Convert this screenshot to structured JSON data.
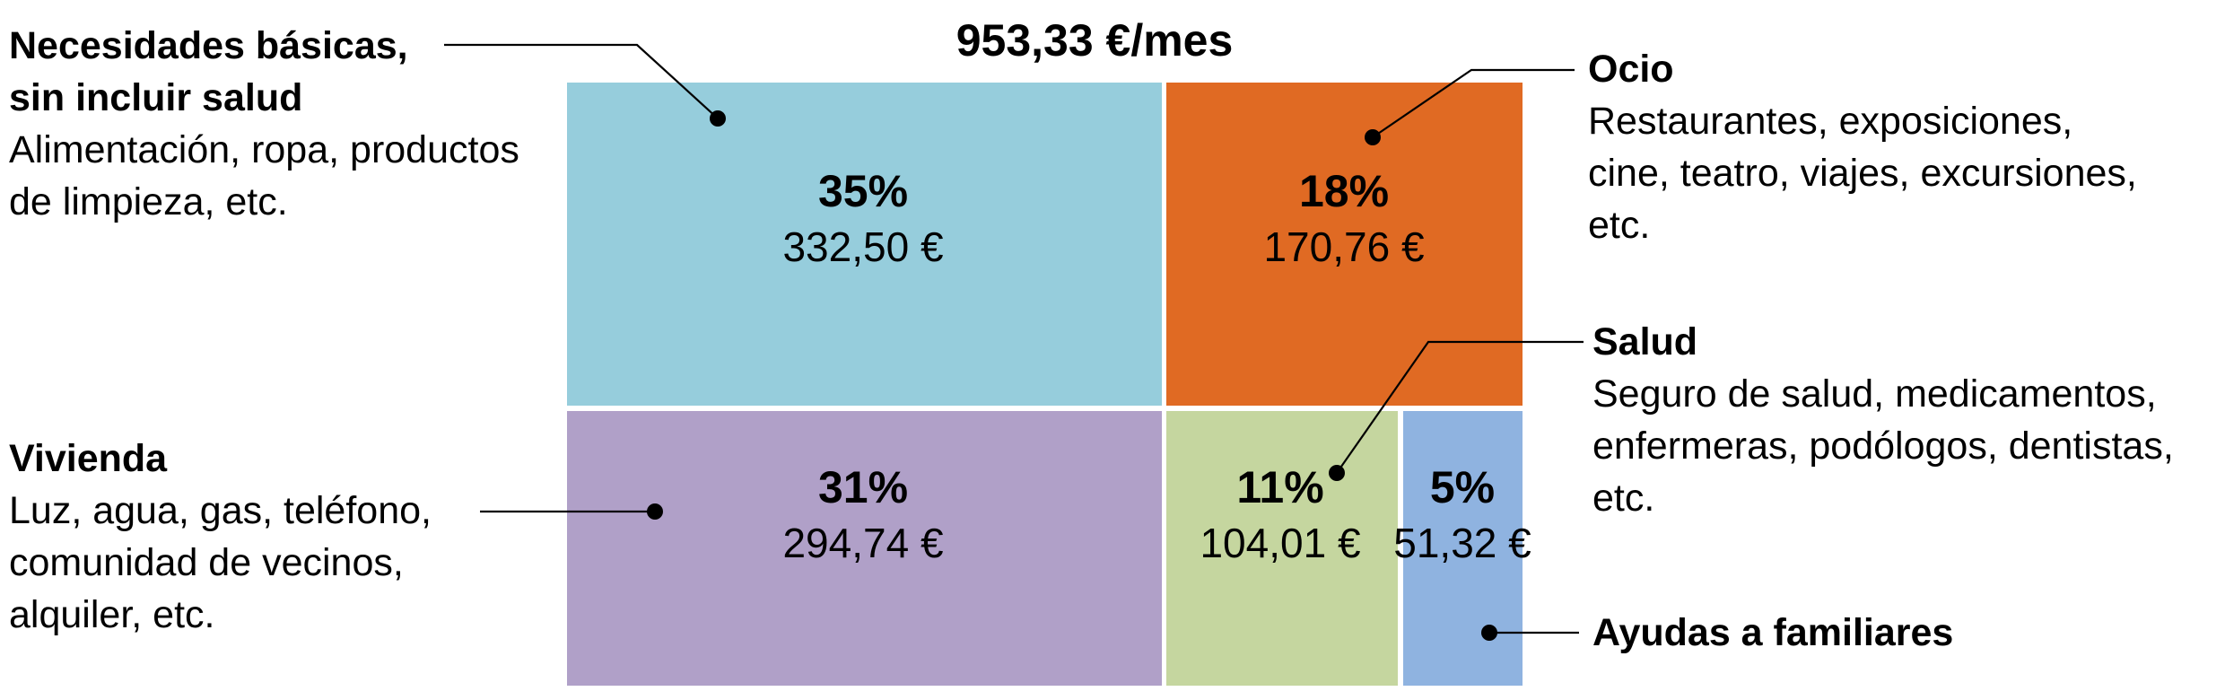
{
  "chart_data": {
    "type": "treemap",
    "title": "953,33 €/mes",
    "items": [
      {
        "key": "necesidades",
        "title_lines": [
          "Necesidades básicas,",
          "sin incluir salud"
        ],
        "desc_lines": [
          "Alimentación, ropa, productos",
          "de limpieza, etc."
        ],
        "percent_label": "35%",
        "value_label": "332,50 €",
        "percent": 35,
        "value": 332.5,
        "color": "#96CDDC"
      },
      {
        "key": "ocio",
        "title_lines": [
          "Ocio"
        ],
        "desc_lines": [
          "Restaurantes, exposiciones,",
          "cine, teatro, viajes, excursiones,",
          "etc."
        ],
        "percent_label": "18%",
        "value_label": "170,76 €",
        "percent": 18,
        "value": 170.76,
        "color": "#E06A23"
      },
      {
        "key": "vivienda",
        "title_lines": [
          "Vivienda"
        ],
        "desc_lines": [
          "Luz, agua, gas, teléfono,",
          "comunidad de vecinos,",
          "alquiler, etc."
        ],
        "percent_label": "31%",
        "value_label": "294,74 €",
        "percent": 31,
        "value": 294.74,
        "color": "#B0A0C8"
      },
      {
        "key": "salud",
        "title_lines": [
          "Salud"
        ],
        "desc_lines": [
          "Seguro de salud, medicamentos,",
          "enfermeras, podólogos, dentistas,",
          "etc."
        ],
        "percent_label": "11%",
        "value_label": "104,01 €",
        "percent": 11,
        "value": 104.01,
        "color": "#C5D69F"
      },
      {
        "key": "ayudas",
        "title_lines": [
          "Ayudas a familiares"
        ],
        "desc_lines": [],
        "percent_label": "5%",
        "value_label": "51,32 €",
        "percent": 5,
        "value": 51.32,
        "color": "#8FB3E0"
      }
    ]
  }
}
